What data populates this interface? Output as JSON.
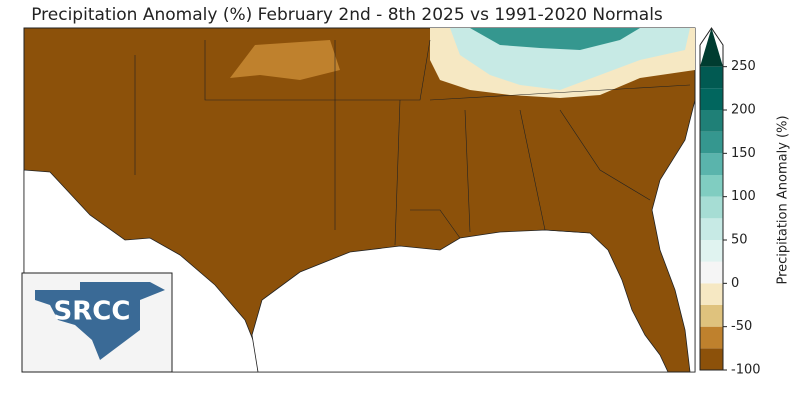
{
  "title": "Precipitation Anomaly (%) February 2nd - 8th 2025 vs 1991-2020 Normals",
  "logo": "SRCC",
  "colorbar": {
    "label": "Precipitation Anomaly (%)",
    "lim": [
      -100,
      275
    ],
    "ticks": [
      -100,
      -50,
      0,
      50,
      100,
      150,
      200,
      250
    ],
    "levels": [
      -100,
      -75,
      -50,
      -25,
      0,
      25,
      50,
      75,
      100,
      125,
      150,
      175,
      200,
      225,
      250,
      275
    ],
    "colors": [
      "#8c510a",
      "#bf812d",
      "#dfc27d",
      "#f6e8c3",
      "#f5f5f5",
      "#e0f3f0",
      "#c7eae5",
      "#a6ddd4",
      "#80cdc1",
      "#5ab4ac",
      "#35978f",
      "#1f8077",
      "#01665e",
      "#015a52",
      "#003c30"
    ]
  }
}
